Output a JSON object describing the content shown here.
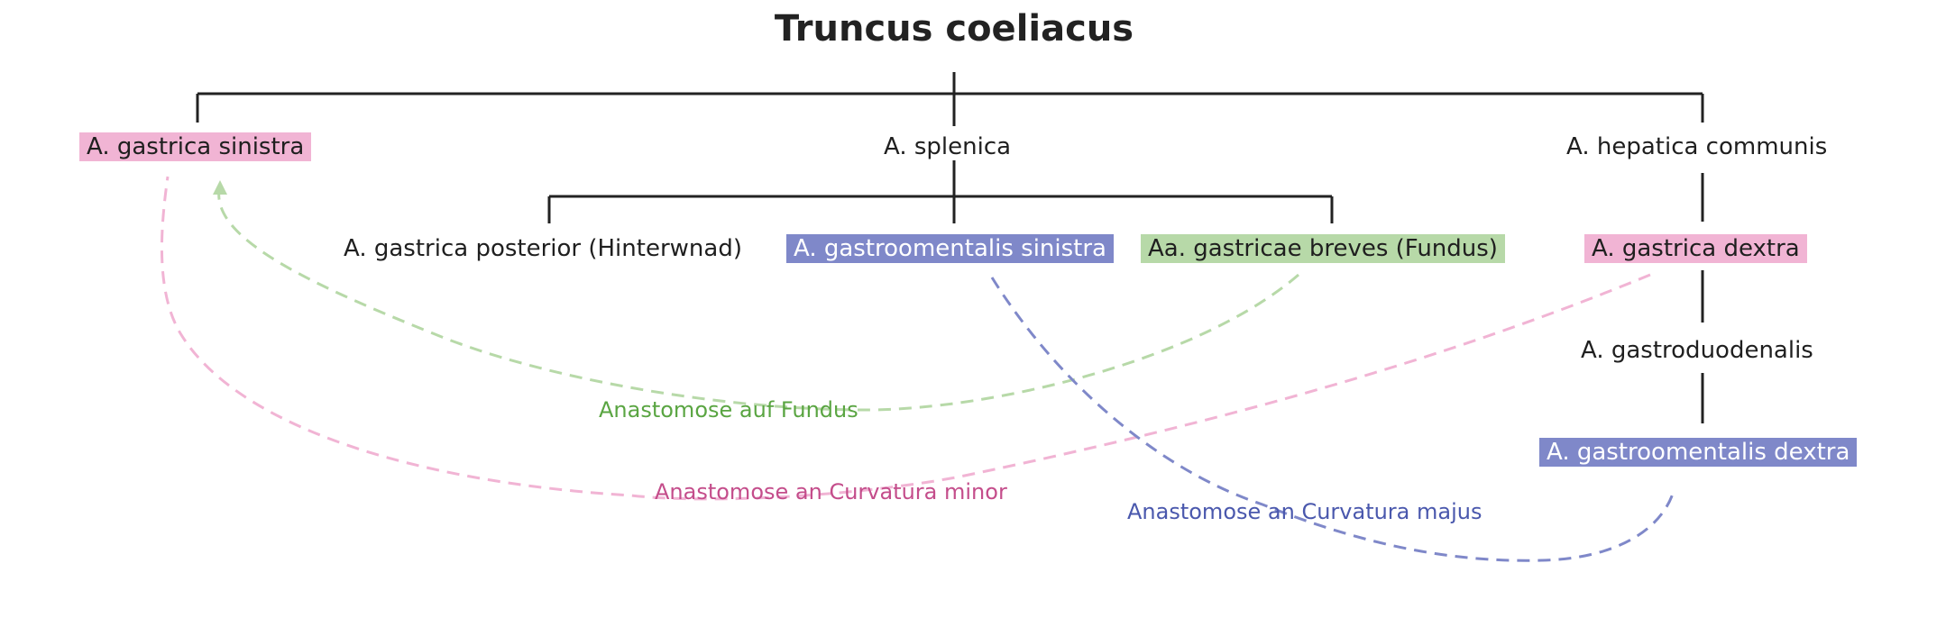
{
  "title": "Truncus coeliacus",
  "nodes": {
    "gastrica_sinistra": "A. gastrica sinistra",
    "splenica": "A. splenica",
    "hepatica_communis": "A. hepatica communis",
    "gastrica_posterior": "A. gastrica posterior (Hinterwnad)",
    "gastroomentalis_sinistra": "A. gastroomentalis sinistra",
    "gastricae_breves": "Aa. gastricae breves (Fundus)",
    "gastrica_dextra": "A. gastrica dextra",
    "gastroduodenalis": "A. gastroduodenalis",
    "gastroomentalis_dextra": "A. gastroomentalis dextra"
  },
  "anastomoses": {
    "fundus": "Anastomose auf Fundus",
    "curvatura_minor": "Anastomose an Curvatura minor",
    "curvatura_majus": "Anastomose an Curvatura majus"
  },
  "colors": {
    "pink": "#f1b4d4",
    "blue": "#7f88c9",
    "green": "#b7d9a8",
    "line": "#222222"
  }
}
